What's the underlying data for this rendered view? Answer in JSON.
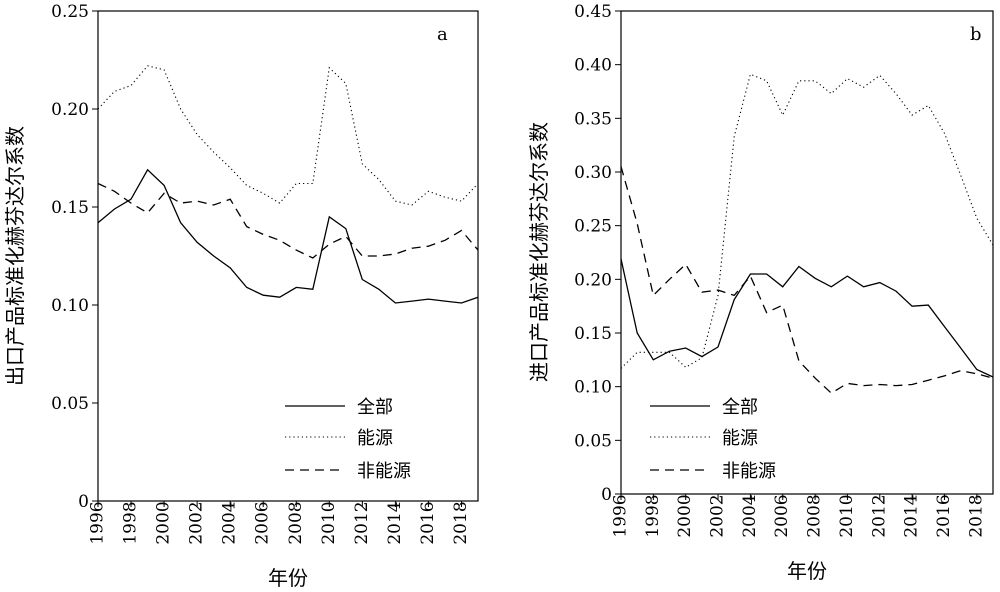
{
  "chart_data": [
    {
      "type": "line",
      "panel_label": "a",
      "xlabel": "年份",
      "ylabel": "出口产品标准化赫芬达尔系数",
      "xlim": [
        1996,
        2019
      ],
      "ylim": [
        0,
        0.25
      ],
      "xticks": [
        "1996",
        "1998",
        "2000",
        "2002",
        "2004",
        "2006",
        "2008",
        "2010",
        "2012",
        "2014",
        "2016",
        "2018"
      ],
      "yticks": [
        "0",
        "0.05",
        "0.10",
        "0.15",
        "0.20",
        "0.25"
      ],
      "grid": false,
      "legend_position": "bottom-right",
      "x": [
        1996,
        1997,
        1998,
        1999,
        2000,
        2001,
        2002,
        2003,
        2004,
        2005,
        2006,
        2007,
        2008,
        2009,
        2010,
        2011,
        2012,
        2013,
        2014,
        2015,
        2016,
        2017,
        2018,
        2019
      ],
      "series": [
        {
          "name": "全部",
          "style": "solid",
          "values": [
            0.142,
            0.149,
            0.154,
            0.169,
            0.161,
            0.142,
            0.132,
            0.125,
            0.119,
            0.109,
            0.105,
            0.104,
            0.109,
            0.108,
            0.145,
            0.139,
            0.113,
            0.108,
            0.101,
            0.102,
            0.103,
            0.102,
            0.101,
            0.104
          ]
        },
        {
          "name": "能源",
          "style": "dotted",
          "values": [
            0.2,
            0.209,
            0.212,
            0.222,
            0.22,
            0.2,
            0.187,
            0.178,
            0.17,
            0.161,
            0.157,
            0.152,
            0.162,
            0.162,
            0.221,
            0.213,
            0.172,
            0.164,
            0.153,
            0.151,
            0.158,
            0.155,
            0.153,
            0.162
          ]
        },
        {
          "name": "非能源",
          "style": "dashed",
          "values": [
            0.162,
            0.158,
            0.152,
            0.147,
            0.157,
            0.152,
            0.153,
            0.151,
            0.154,
            0.14,
            0.136,
            0.133,
            0.128,
            0.124,
            0.131,
            0.135,
            0.125,
            0.125,
            0.126,
            0.129,
            0.13,
            0.133,
            0.138,
            0.128
          ]
        }
      ]
    },
    {
      "type": "line",
      "panel_label": "b",
      "xlabel": "年份",
      "ylabel": "进口产品标准化赫芬达尔系数",
      "xlim": [
        1996,
        2019
      ],
      "ylim": [
        0,
        0.45
      ],
      "xticks": [
        "1996",
        "1998",
        "2000",
        "2002",
        "2004",
        "2006",
        "2008",
        "2010",
        "2012",
        "2014",
        "2016",
        "2018"
      ],
      "yticks": [
        "0",
        "0.05",
        "0.10",
        "0.15",
        "0.20",
        "0.25",
        "0.30",
        "0.35",
        "0.40",
        "0.45"
      ],
      "grid": false,
      "legend_position": "bottom-left",
      "x": [
        1996,
        1997,
        1998,
        1999,
        2000,
        2001,
        2002,
        2003,
        2004,
        2005,
        2006,
        2007,
        2008,
        2009,
        2010,
        2011,
        2012,
        2013,
        2014,
        2015,
        2016,
        2017,
        2018,
        2019
      ],
      "series": [
        {
          "name": "全部",
          "style": "solid",
          "values": [
            0.219,
            0.15,
            0.125,
            0.133,
            0.136,
            0.128,
            0.137,
            0.181,
            0.205,
            0.205,
            0.193,
            0.212,
            0.201,
            0.193,
            0.203,
            0.193,
            0.197,
            0.189,
            0.175,
            0.176,
            0.156,
            0.136,
            0.116,
            0.109
          ]
        },
        {
          "name": "能源",
          "style": "dotted",
          "values": [
            0.117,
            0.132,
            0.132,
            0.132,
            0.118,
            0.127,
            0.185,
            0.333,
            0.391,
            0.385,
            0.353,
            0.385,
            0.385,
            0.373,
            0.387,
            0.379,
            0.39,
            0.373,
            0.353,
            0.362,
            0.336,
            0.297,
            0.257,
            0.232
          ]
        },
        {
          "name": "非能源",
          "style": "dashed",
          "values": [
            0.305,
            0.252,
            0.185,
            0.2,
            0.214,
            0.188,
            0.19,
            0.185,
            0.203,
            0.169,
            0.176,
            0.124,
            0.108,
            0.094,
            0.103,
            0.101,
            0.102,
            0.101,
            0.102,
            0.106,
            0.11,
            0.115,
            0.112,
            0.108
          ]
        }
      ]
    }
  ]
}
